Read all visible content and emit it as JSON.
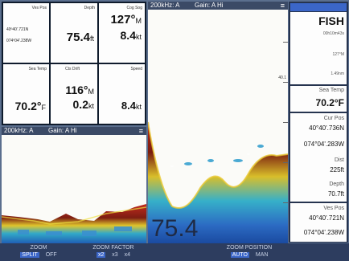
{
  "data_grid": {
    "cells": [
      {
        "label": "Ves Pos",
        "line1": "40º40'.721N",
        "line2": "074º04'.238W"
      },
      {
        "label": "Depth",
        "value": "75.4",
        "unit": "ft"
      },
      {
        "label": "Cog Sog",
        "value": "127°",
        "unit": "M",
        "value2": "8.4",
        "unit2": "kt"
      },
      {
        "label": "Sea Temp",
        "value": "70.2°",
        "unit": "F"
      },
      {
        "label": "Cts Drift",
        "value": "116°",
        "unit": "M",
        "value2": "0.2",
        "unit2": "kt"
      },
      {
        "label": "Speed",
        "value": "8.4",
        "unit": "kt"
      }
    ]
  },
  "sonar_small": {
    "freq": "200kHz: A",
    "gain": "Gain: A Hi",
    "menu": "≡"
  },
  "sonar_main": {
    "freq": "200kHz: A",
    "gain": "Gain: A Hi",
    "menu": "≡",
    "depth_readout": "75.4",
    "depth_mark": "40.1"
  },
  "right_panel": {
    "title": "FISH",
    "line1": "00h10m43s",
    "line2": "127°M",
    "line3": "1.49nm",
    "sea_temp_label": "Sea Temp",
    "sea_temp_value": "70.2°F",
    "cur_pos_label": "Cur Pos",
    "cur_pos_lat": "40°40'.736N",
    "cur_pos_lon": "074°04'.283W",
    "dist_label": "Dist",
    "dist_value": "225ft",
    "depth_label": "Depth",
    "depth_value": "70.7ft",
    "ves_pos_label": "Ves Pos",
    "ves_pos_lat": "40°40'.721N",
    "ves_pos_lon": "074°04'.238W"
  },
  "bottom_bar": {
    "zoom": {
      "title": "ZOOM",
      "opts": [
        "SPLIT",
        "OFF"
      ]
    },
    "zoom_factor": {
      "title": "ZOOM FACTOR",
      "opts": [
        "x2",
        "x3",
        "x4"
      ]
    },
    "zoom_position": {
      "title": "ZOOM POSITION",
      "opts": [
        "AUTO",
        "MAN"
      ]
    }
  }
}
